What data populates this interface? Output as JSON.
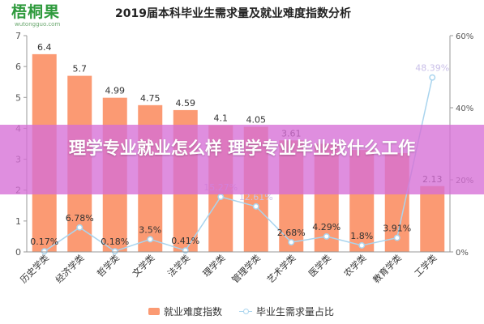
{
  "logo": {
    "name": "梧桐果",
    "domain": "wutongguo.com"
  },
  "chart_data": {
    "type": "bar",
    "title": "2019届本科毕业生需求量及就业难度指数分析",
    "categories": [
      "历史学类",
      "经济学类",
      "哲学类",
      "文学类",
      "法学类",
      "理学类",
      "管理学类",
      "艺术学类",
      "医学类",
      "农学类",
      "教育学类",
      "工学类"
    ],
    "series": [
      {
        "name": "就业难度指数",
        "type": "bar",
        "axis": "left",
        "values": [
          6.4,
          5.7,
          4.99,
          4.75,
          4.59,
          4.1,
          4.05,
          3.61,
          3.5,
          3.3,
          3.2,
          2.13
        ],
        "labels": [
          "6.4",
          "5.7",
          "4.99",
          "4.75",
          "4.59",
          "4.1",
          "4.05",
          "3.61",
          "",
          "",
          "",
          "2.13"
        ],
        "color": "#fb9a73"
      },
      {
        "name": "毕业生需求量占比",
        "type": "line",
        "axis": "right",
        "values": [
          0.17,
          6.78,
          0.18,
          3.5,
          0.41,
          15.27,
          12.61,
          2.68,
          4.29,
          1.8,
          3.91,
          48.39
        ],
        "labels": [
          "0.17%",
          "6.78%",
          "0.18%",
          "3.5%",
          "0.41%",
          "15.27%",
          "12.61%",
          "2.68%",
          "4.29%",
          "1.8%",
          "3.91%",
          "48.39%"
        ],
        "color": "#a9d4ee"
      }
    ],
    "y_left": {
      "min": 0,
      "max": 7,
      "ticks": [
        "0",
        "1",
        "2",
        "3",
        "4",
        "5",
        "6",
        "7"
      ]
    },
    "y_right": {
      "min": 0,
      "max": 60,
      "ticks": [
        "0%",
        "20%",
        "40%",
        "60%"
      ]
    },
    "legend_position": "bottom",
    "grid": false
  },
  "banner": {
    "text": "理学专业就业怎么样 理学专业毕业找什么工作"
  }
}
